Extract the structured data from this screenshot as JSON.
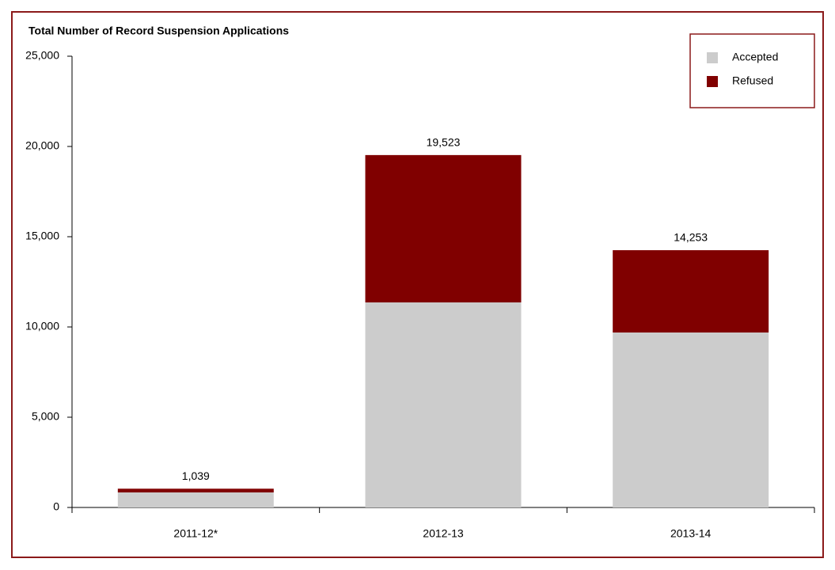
{
  "chart_data": {
    "type": "stacked_bar",
    "title": "Total Number of Record Suspension Applications",
    "categories": [
      "2011-12*",
      "2012-13",
      "2013-14"
    ],
    "series": [
      {
        "name": "Accepted",
        "color": "#cccccc",
        "values": [
          833,
          11360,
          9693
        ]
      },
      {
        "name": "Refused",
        "color": "#800000",
        "values": [
          206,
          8163,
          4560
        ]
      }
    ],
    "totals": {
      "values": [
        1039,
        19523,
        14253
      ],
      "value_labels": [
        "1,039",
        "19,523",
        "14,253"
      ]
    },
    "ylim": [
      0,
      25000
    ],
    "yticks": [
      0,
      {
        "value": 5000,
        "label": "5,000"
      },
      {
        "value": 10000,
        "label": "10,000"
      },
      {
        "value": 15000,
        "label": "15,000"
      },
      {
        "value": 20000,
        "label": "20,000"
      },
      {
        "value": 25000,
        "label": "25,000"
      }
    ],
    "grid": false,
    "legend": "top-right"
  }
}
